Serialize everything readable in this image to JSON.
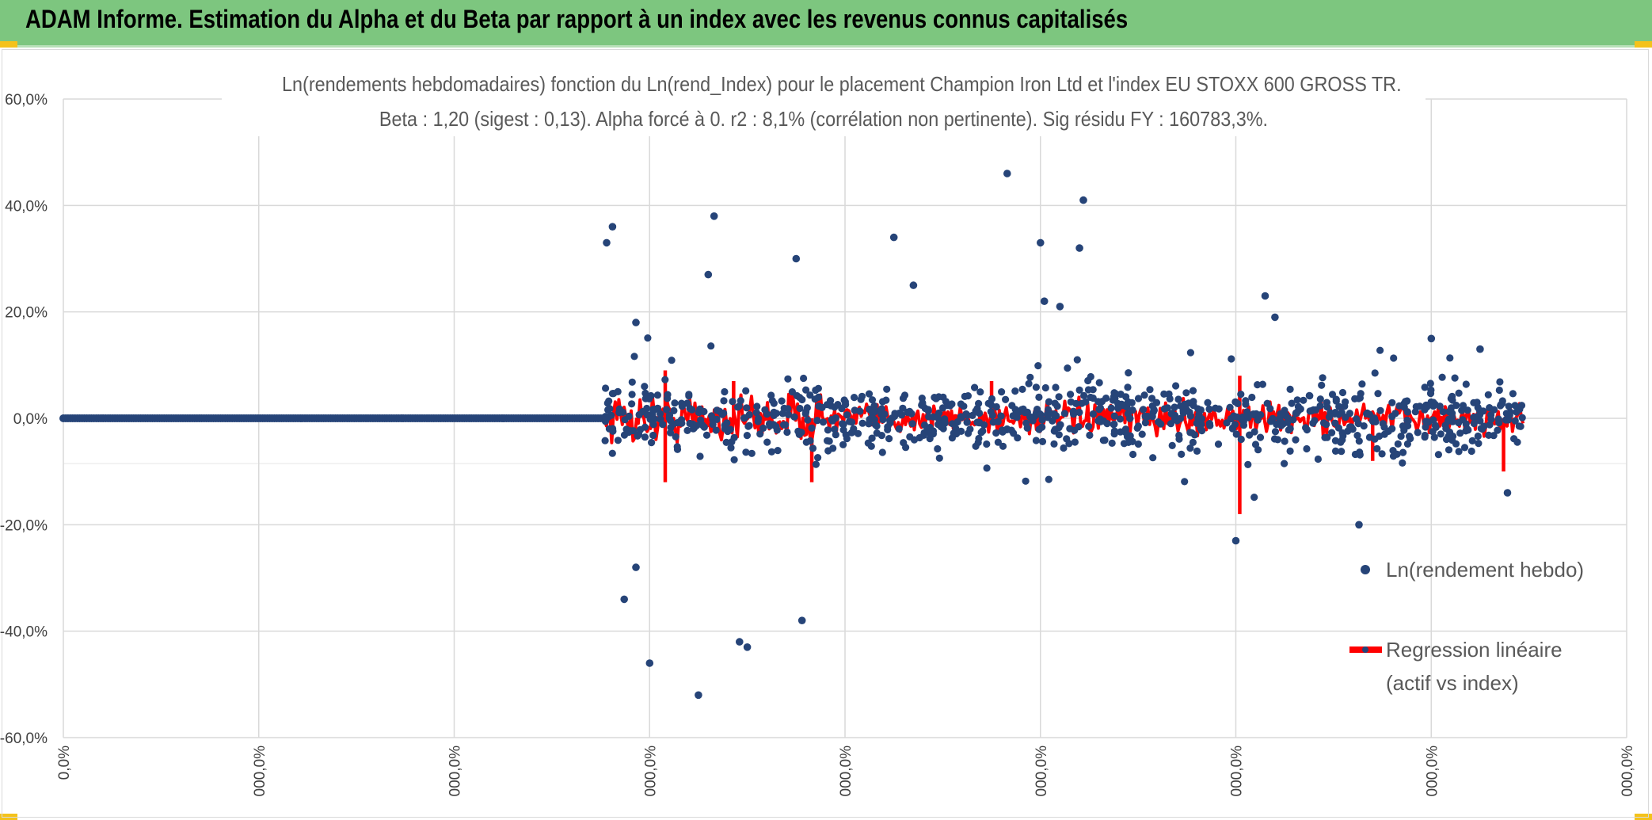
{
  "banner": {
    "title": "ADAM Informe. Estimation du Alpha et du Beta par rapport à un index avec les revenus connus capitalisés",
    "background": "#7dc67f"
  },
  "chart_data": {
    "type": "scatter",
    "title_line1": "Ln(rendements hebdomadaires) fonction du Ln(rend_Index) pour le placement Champion Iron Ltd et l'index EU STOXX 600 GROSS TR.",
    "title_line2": "Beta : 1,20 (sigest : 0,13). Alpha forcé à 0. r2 : 8,1% (corrélation non pertinente). Sig résidu FY : 160783,3%.",
    "y_ticks": [
      "60,0%",
      "40,0%",
      "20,0%",
      "0,0%",
      "-20,0%",
      "-40,0%",
      "-60,0%"
    ],
    "y_tick_values": [
      60,
      40,
      20,
      0,
      -20,
      -40,
      -60
    ],
    "ylim": [
      -60,
      60
    ],
    "x_ticks": [
      "0,0%",
      "000,0%",
      "000,0%",
      "000,0%",
      "000,0%",
      "000,0%",
      "000,0%",
      "000,0%",
      "000,0%"
    ],
    "xlim": [
      0,
      8
    ],
    "grid": true,
    "legend_placement": "right",
    "series": [
      {
        "name": "Ln(rendement hebdo)",
        "color": "#264478",
        "kind": "points",
        "zero_segment": [
          0,
          2.77
        ],
        "active_range": [
          2.77,
          7.47
        ],
        "notable_points": [
          [
            2.78,
            33
          ],
          [
            2.81,
            36
          ],
          [
            2.93,
            18
          ],
          [
            3.0,
            -46
          ],
          [
            2.93,
            -28
          ],
          [
            2.87,
            -34
          ],
          [
            3.25,
            -52
          ],
          [
            3.33,
            38
          ],
          [
            3.3,
            27
          ],
          [
            3.5,
            -43
          ],
          [
            3.46,
            -42
          ],
          [
            3.75,
            30
          ],
          [
            3.78,
            -38
          ],
          [
            4.25,
            34
          ],
          [
            4.35,
            25
          ],
          [
            4.83,
            46
          ],
          [
            5.0,
            33
          ],
          [
            5.02,
            22
          ],
          [
            5.22,
            41
          ],
          [
            5.2,
            32
          ],
          [
            5.1,
            21
          ],
          [
            6.0,
            -23
          ],
          [
            6.15,
            23
          ],
          [
            6.2,
            19
          ],
          [
            6.63,
            -20
          ],
          [
            7.0,
            15
          ],
          [
            7.25,
            13
          ],
          [
            7.39,
            -14
          ]
        ]
      },
      {
        "name": "Regression linéaire",
        "name_line2": "(actif vs index)",
        "color": "#ff0000",
        "kind": "band",
        "range": [
          2.77,
          7.47
        ],
        "typical_amplitude": [
          -3,
          3
        ],
        "spikes": [
          [
            3.08,
            9
          ],
          [
            3.08,
            -12
          ],
          [
            3.43,
            7
          ],
          [
            3.83,
            -12
          ],
          [
            4.75,
            7
          ],
          [
            6.02,
            8
          ],
          [
            6.02,
            -18
          ],
          [
            6.7,
            -8
          ],
          [
            7.37,
            -10
          ]
        ]
      }
    ]
  }
}
